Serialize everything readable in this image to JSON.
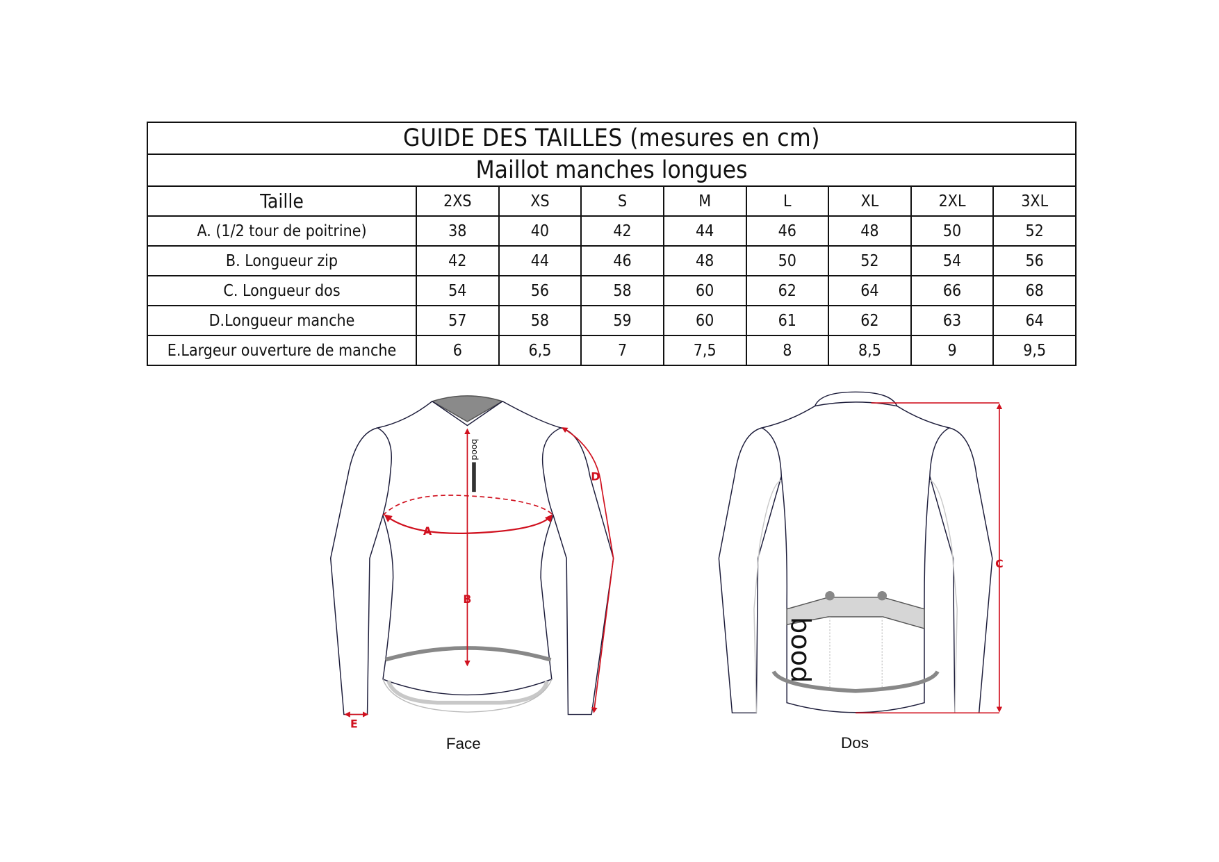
{
  "table": {
    "title": "GUIDE DES TAILLES (mesures en cm)",
    "subtitle": "Maillot manches longues",
    "size_header": "Taille",
    "sizes": [
      "2XS",
      "XS",
      "S",
      "M",
      "L",
      "XL",
      "2XL",
      "3XL"
    ],
    "rows": [
      {
        "label": "A. (1/2 tour de poitrine)",
        "values": [
          "38",
          "40",
          "42",
          "44",
          "46",
          "48",
          "50",
          "52"
        ]
      },
      {
        "label": "B. Longueur zip",
        "values": [
          "42",
          "44",
          "46",
          "48",
          "50",
          "52",
          "54",
          "56"
        ]
      },
      {
        "label": "C. Longueur dos",
        "values": [
          "54",
          "56",
          "58",
          "60",
          "62",
          "64",
          "66",
          "68"
        ]
      },
      {
        "label": "D.Longueur manche",
        "values": [
          "57",
          "58",
          "59",
          "60",
          "61",
          "62",
          "63",
          "64"
        ]
      },
      {
        "label": "E.Largeur ouverture de manche",
        "values": [
          "6",
          "6,5",
          "7",
          "7,5",
          "8",
          "8,5",
          "9",
          "9,5"
        ]
      }
    ]
  },
  "diagram": {
    "front_label": "Face",
    "back_label": "Dos",
    "markers": {
      "a": "A",
      "b": "B",
      "c": "C",
      "d": "D",
      "e": "E"
    },
    "logo": "bood",
    "measure_color": "#d0101e",
    "outline_color": "#1c1c3a"
  }
}
